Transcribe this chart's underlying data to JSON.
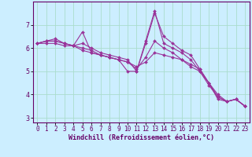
{
  "xlabel": "Windchill (Refroidissement éolien,°C)",
  "background_color": "#cceeff",
  "grid_color": "#aaddcc",
  "line_color": "#993399",
  "series": [
    {
      "x": [
        0,
        1,
        2,
        3,
        4,
        5,
        6,
        7,
        8,
        9,
        10,
        11,
        12,
        13,
        14,
        15,
        16,
        17,
        18,
        19,
        20,
        21,
        22,
        23
      ],
      "y": [
        6.2,
        6.3,
        6.4,
        6.2,
        6.1,
        6.7,
        5.8,
        5.7,
        5.6,
        5.5,
        5.0,
        5.0,
        6.2,
        7.5,
        6.5,
        6.2,
        5.9,
        5.7,
        5.1,
        4.5,
        3.8,
        3.7,
        3.8,
        3.5
      ]
    },
    {
      "x": [
        0,
        1,
        2,
        3,
        4,
        5,
        6,
        7,
        8,
        9,
        10,
        11,
        12,
        13,
        14,
        15,
        16,
        17,
        18,
        19,
        20,
        21,
        22,
        23
      ],
      "y": [
        6.2,
        6.3,
        6.3,
        6.2,
        6.1,
        6.2,
        6.0,
        5.8,
        5.7,
        5.6,
        5.5,
        5.0,
        6.3,
        7.6,
        6.2,
        6.0,
        5.8,
        5.5,
        5.0,
        4.5,
        3.9,
        3.7,
        3.8,
        3.5
      ]
    },
    {
      "x": [
        0,
        1,
        2,
        3,
        4,
        5,
        6,
        7,
        8,
        9,
        10,
        11,
        12,
        13,
        14,
        15,
        16,
        17,
        18,
        19,
        20,
        21,
        22,
        23
      ],
      "y": [
        6.2,
        6.3,
        6.3,
        6.2,
        6.1,
        6.0,
        5.9,
        5.7,
        5.6,
        5.5,
        5.4,
        5.1,
        5.6,
        6.3,
        6.0,
        5.8,
        5.5,
        5.2,
        5.0,
        4.4,
        3.9,
        3.7,
        3.8,
        3.5
      ]
    },
    {
      "x": [
        0,
        1,
        2,
        3,
        4,
        5,
        6,
        7,
        8,
        9,
        10,
        11,
        12,
        13,
        14,
        15,
        16,
        17,
        18,
        19,
        20,
        21,
        22,
        23
      ],
      "y": [
        6.2,
        6.2,
        6.2,
        6.1,
        6.1,
        5.9,
        5.8,
        5.7,
        5.6,
        5.5,
        5.4,
        5.2,
        5.4,
        5.8,
        5.7,
        5.6,
        5.5,
        5.3,
        5.1,
        4.5,
        4.0,
        3.7,
        3.8,
        3.5
      ]
    }
  ],
  "xlim": [
    -0.5,
    23.5
  ],
  "ylim": [
    2.8,
    8.0
  ],
  "yticks": [
    3,
    4,
    5,
    6,
    7
  ],
  "xticks": [
    0,
    1,
    2,
    3,
    4,
    5,
    6,
    7,
    8,
    9,
    10,
    11,
    12,
    13,
    14,
    15,
    16,
    17,
    18,
    19,
    20,
    21,
    22,
    23
  ],
  "tick_fontsize": 5.5,
  "xlabel_fontsize": 6.0
}
